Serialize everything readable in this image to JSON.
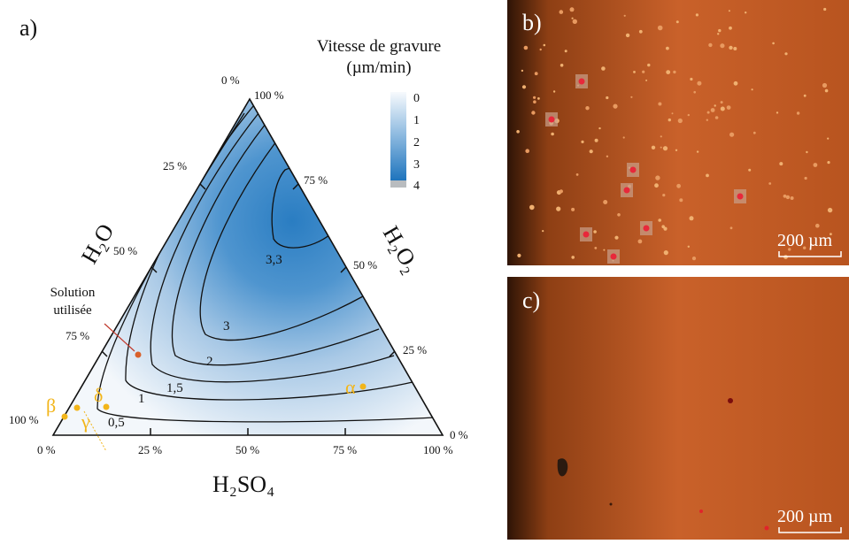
{
  "panel_a": {
    "label": "a)",
    "colorbar": {
      "title": "Vitesse de gravure",
      "unit": "(µm/min)",
      "ticks": [
        "0",
        "1",
        "2",
        "3",
        "4"
      ]
    },
    "axes": {
      "h2so4": {
        "title": "H₂SO₄",
        "ticks": [
          "0 %",
          "25 %",
          "50 %",
          "75 %",
          "100 %"
        ]
      },
      "h2o": {
        "title": "H₂O",
        "ticks": [
          "0 %",
          "25 %",
          "50 %",
          "75 %",
          "100 %"
        ]
      },
      "h2o2": {
        "title": "H₂O₂",
        "ticks": [
          "100 %",
          "75 %",
          "50 %",
          "25 %",
          "0 %"
        ]
      }
    },
    "contour_labels": [
      "0,5",
      "1",
      "1,5",
      "2",
      "3",
      "3,3"
    ],
    "points": [
      "α",
      "β",
      "γ",
      "δ"
    ],
    "annotation": [
      "Solution",
      "utilisée"
    ]
  },
  "panel_b": {
    "label": "b)",
    "scale_bar": "200 µm"
  },
  "panel_c": {
    "label": "c)",
    "scale_bar": "200 µm"
  }
}
